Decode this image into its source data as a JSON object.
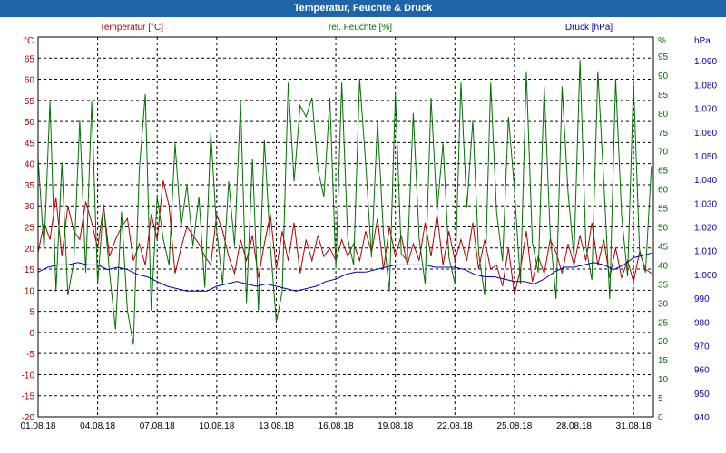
{
  "window": {
    "title": "Temperatur, Feuchte & Druck"
  },
  "colors": {
    "temperature": "#b00000",
    "humidity": "#007000",
    "pressure": "#0000b0",
    "grid": "#000000",
    "titlebar": "#1e64a8"
  },
  "chart_data": {
    "type": "line",
    "title": "",
    "grid": true,
    "x_labels": [
      "01.08.18",
      "04.08.18",
      "07.08.18",
      "10.08.18",
      "13.08.18",
      "16.08.18",
      "19.08.18",
      "22.08.18",
      "25.08.18",
      "28.08.18",
      "31.08.18"
    ],
    "x_range_days": [
      1,
      32
    ],
    "axes": {
      "temperature": {
        "label": "Temperatur [°C]",
        "unit": "°C",
        "range": [
          -20,
          70
        ],
        "ticks": [
          -20,
          -15,
          -10,
          -5,
          0,
          5,
          10,
          15,
          20,
          25,
          30,
          35,
          40,
          45,
          50,
          55,
          60,
          65
        ]
      },
      "humidity": {
        "label": "rel. Feuchte [%]",
        "unit": "%",
        "range": [
          0,
          100
        ],
        "ticks": [
          0,
          5,
          10,
          15,
          20,
          25,
          30,
          35,
          40,
          45,
          50,
          55,
          60,
          65,
          70,
          75,
          80,
          85,
          90,
          95
        ]
      },
      "pressure": {
        "label": "Druck [hPa]",
        "unit": "hPa",
        "range": [
          940,
          1100
        ],
        "ticks": [
          940,
          950,
          960,
          970,
          980,
          990,
          1000,
          1010,
          1020,
          1030,
          1040,
          1050,
          1060,
          1070,
          1080,
          1090
        ]
      }
    },
    "series": [
      {
        "name": "Temperatur [°C]",
        "axis": "temperature",
        "x": [
          1.0,
          1.3,
          1.6,
          1.9,
          2.2,
          2.5,
          2.8,
          3.1,
          3.4,
          3.7,
          4.0,
          4.3,
          4.6,
          4.9,
          5.2,
          5.5,
          5.8,
          6.1,
          6.4,
          6.7,
          7.0,
          7.3,
          7.6,
          7.9,
          8.2,
          8.5,
          8.8,
          9.1,
          9.4,
          9.7,
          10.0,
          10.3,
          10.6,
          10.9,
          11.2,
          11.5,
          11.8,
          12.1,
          12.4,
          12.7,
          13.0,
          13.3,
          13.6,
          13.9,
          14.2,
          14.5,
          14.8,
          15.1,
          15.4,
          15.7,
          16.0,
          16.3,
          16.6,
          16.9,
          17.2,
          17.5,
          17.8,
          18.1,
          18.4,
          18.7,
          19.0,
          19.3,
          19.6,
          19.9,
          20.2,
          20.5,
          20.8,
          21.1,
          21.4,
          21.7,
          22.0,
          22.3,
          22.6,
          22.9,
          23.2,
          23.5,
          23.8,
          24.1,
          24.4,
          24.7,
          25.0,
          25.3,
          25.6,
          25.9,
          26.2,
          26.5,
          26.8,
          27.1,
          27.4,
          27.7,
          28.0,
          28.3,
          28.6,
          28.9,
          29.2,
          29.5,
          29.8,
          30.1,
          30.4,
          30.7,
          31.0,
          31.3,
          31.6,
          31.9
        ],
        "y": [
          19,
          26,
          22,
          32,
          18,
          30,
          24,
          22,
          31,
          26,
          20,
          30,
          18,
          22,
          25,
          27,
          17,
          21,
          16,
          28,
          22,
          36,
          30,
          14,
          20,
          25,
          23,
          21,
          18,
          16,
          28,
          24,
          18,
          14,
          22,
          17,
          23,
          13,
          21,
          28,
          15,
          24,
          17,
          26,
          14,
          22,
          17,
          23,
          18,
          20,
          17,
          22,
          18,
          21,
          17,
          24,
          19,
          27,
          15,
          25,
          18,
          23,
          16,
          21,
          17,
          26,
          18,
          28,
          16,
          24,
          17,
          22,
          17,
          26,
          15,
          22,
          15,
          16,
          11,
          20,
          9,
          15,
          24,
          12,
          18,
          14,
          22,
          19,
          14,
          21,
          16,
          23,
          17,
          26,
          16,
          22,
          13,
          20,
          13,
          17,
          12,
          19,
          15,
          14
        ]
      },
      {
        "name": "rel. Feuchte [%]",
        "axis": "humidity",
        "x": [
          1.0,
          1.3,
          1.6,
          1.9,
          2.2,
          2.5,
          2.8,
          3.1,
          3.4,
          3.7,
          4.0,
          4.3,
          4.6,
          4.9,
          5.2,
          5.5,
          5.8,
          6.1,
          6.4,
          6.7,
          7.0,
          7.3,
          7.6,
          7.9,
          8.2,
          8.5,
          8.8,
          9.1,
          9.4,
          9.7,
          10.0,
          10.3,
          10.6,
          10.9,
          11.2,
          11.5,
          11.8,
          12.1,
          12.4,
          12.7,
          13.0,
          13.3,
          13.6,
          13.9,
          14.2,
          14.5,
          14.8,
          15.1,
          15.4,
          15.7,
          16.0,
          16.3,
          16.6,
          16.9,
          17.2,
          17.5,
          17.8,
          18.1,
          18.4,
          18.7,
          19.0,
          19.3,
          19.6,
          19.9,
          20.2,
          20.5,
          20.8,
          21.1,
          21.4,
          21.7,
          22.0,
          22.3,
          22.6,
          22.9,
          23.2,
          23.5,
          23.8,
          24.1,
          24.4,
          24.7,
          25.0,
          25.3,
          25.6,
          25.9,
          26.2,
          26.5,
          26.8,
          27.1,
          27.4,
          27.7,
          28.0,
          28.3,
          28.6,
          28.9,
          29.2,
          29.5,
          29.8,
          30.1,
          30.4,
          30.7,
          31.0,
          31.3,
          31.6,
          31.9
        ],
        "y": [
          68,
          44,
          83,
          33,
          67,
          32,
          41,
          78,
          38,
          83,
          35,
          56,
          38,
          23,
          54,
          28,
          19,
          65,
          85,
          28,
          58,
          47,
          40,
          72,
          50,
          61,
          45,
          58,
          34,
          75,
          49,
          35,
          62,
          45,
          83,
          30,
          68,
          28,
          73,
          45,
          25,
          33,
          88,
          62,
          82,
          79,
          84,
          65,
          58,
          84,
          39,
          88,
          47,
          40,
          89,
          67,
          42,
          78,
          48,
          33,
          85,
          43,
          41,
          80,
          47,
          35,
          84,
          54,
          72,
          42,
          35,
          88,
          55,
          78,
          43,
          32,
          88,
          54,
          41,
          79,
          60,
          35,
          91,
          46,
          38,
          87,
          48,
          31,
          87,
          59,
          42,
          94,
          45,
          36,
          91,
          62,
          31,
          89,
          53,
          37,
          88,
          44,
          38,
          66
        ]
      },
      {
        "name": "Druck [hPa]",
        "axis": "pressure",
        "x": [
          1.0,
          1.5,
          2.0,
          2.5,
          3.0,
          3.5,
          4.0,
          4.5,
          5.0,
          5.5,
          6.0,
          6.5,
          7.0,
          7.5,
          8.0,
          8.5,
          9.0,
          9.5,
          10.0,
          10.5,
          11.0,
          11.5,
          12.0,
          12.5,
          13.0,
          13.5,
          14.0,
          14.5,
          15.0,
          15.5,
          16.0,
          16.5,
          17.0,
          17.5,
          18.0,
          18.5,
          19.0,
          19.5,
          20.0,
          20.5,
          21.0,
          21.5,
          22.0,
          22.5,
          23.0,
          23.5,
          24.0,
          24.5,
          25.0,
          25.5,
          26.0,
          26.5,
          27.0,
          27.5,
          28.0,
          28.5,
          29.0,
          29.5,
          30.0,
          30.5,
          31.0,
          31.5,
          31.9
        ],
        "y": [
          1001,
          1003,
          1004,
          1004,
          1005,
          1004,
          1004,
          1002,
          1003,
          1002,
          1000,
          999,
          997,
          995,
          994,
          993,
          993,
          993,
          995,
          996,
          997,
          996,
          995,
          996,
          995,
          994,
          993,
          994,
          995,
          997,
          998,
          1000,
          1001,
          1001,
          1002,
          1003,
          1004,
          1004,
          1004,
          1004,
          1003,
          1003,
          1003,
          1002,
          1000,
          999,
          999,
          998,
          997,
          997,
          996,
          998,
          1001,
          1003,
          1003,
          1004,
          1005,
          1004,
          1002,
          1004,
          1007,
          1008,
          1009
        ]
      }
    ]
  }
}
